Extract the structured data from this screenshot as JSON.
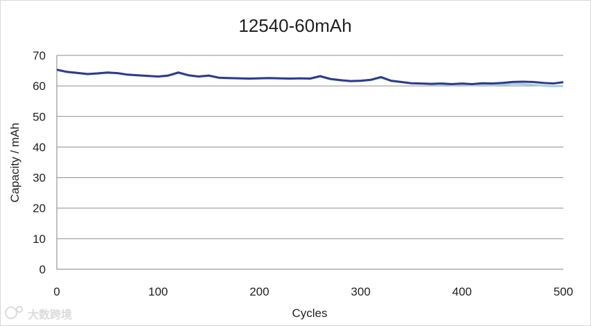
{
  "chart_data": {
    "type": "line",
    "title": "12540-60mAh",
    "xlabel": "Cycles",
    "ylabel": "Capacity / mAh",
    "xlim": [
      0,
      500
    ],
    "ylim": [
      0,
      70
    ],
    "xticks": [
      0,
      100,
      200,
      300,
      400,
      500
    ],
    "yticks": [
      0,
      10,
      20,
      30,
      40,
      50,
      60,
      70
    ],
    "grid": "horizontal",
    "legend": "none",
    "series": [
      {
        "color": "#a8d0dc",
        "x": [
          0,
          10,
          20,
          30,
          40,
          50,
          60,
          70,
          80,
          90,
          100,
          110,
          120,
          130,
          140,
          150,
          160,
          170,
          180,
          190,
          200,
          210,
          220,
          230,
          240,
          250,
          260,
          270,
          280,
          290,
          300,
          310,
          320,
          330,
          340,
          350,
          360,
          370,
          380,
          390,
          400,
          410,
          420,
          430,
          440,
          450,
          460,
          470,
          480,
          490,
          500
        ],
        "y": [
          65.2,
          64.5,
          64.2,
          63.8,
          64.0,
          64.3,
          64.1,
          63.6,
          63.4,
          63.2,
          63.0,
          63.3,
          64.2,
          63.4,
          63.0,
          63.3,
          62.6,
          62.5,
          62.4,
          62.3,
          62.4,
          62.5,
          62.4,
          62.3,
          62.4,
          62.3,
          63.1,
          62.2,
          61.8,
          61.5,
          61.6,
          61.9,
          62.7,
          61.6,
          61.2,
          60.8,
          60.7,
          60.5,
          60.6,
          60.3,
          60.4,
          60.2,
          60.4,
          60.3,
          60.4,
          60.7,
          60.6,
          60.4,
          60.1,
          59.9,
          60.0
        ]
      },
      {
        "color": "#2e3a8c",
        "x": [
          0,
          10,
          20,
          30,
          40,
          50,
          60,
          70,
          80,
          90,
          100,
          110,
          120,
          130,
          140,
          150,
          160,
          170,
          180,
          190,
          200,
          210,
          220,
          230,
          240,
          250,
          260,
          270,
          280,
          290,
          300,
          310,
          320,
          330,
          340,
          350,
          360,
          370,
          380,
          390,
          400,
          410,
          420,
          430,
          440,
          450,
          460,
          470,
          480,
          490,
          500
        ],
        "y": [
          65.3,
          64.6,
          64.3,
          63.9,
          64.1,
          64.4,
          64.2,
          63.7,
          63.5,
          63.3,
          63.1,
          63.4,
          64.4,
          63.5,
          63.1,
          63.4,
          62.7,
          62.6,
          62.5,
          62.4,
          62.5,
          62.6,
          62.5,
          62.4,
          62.5,
          62.4,
          63.2,
          62.3,
          61.9,
          61.6,
          61.7,
          62.0,
          62.9,
          61.7,
          61.3,
          60.9,
          60.8,
          60.7,
          60.8,
          60.6,
          60.8,
          60.6,
          60.9,
          60.8,
          61.0,
          61.3,
          61.4,
          61.3,
          61.0,
          60.8,
          61.2
        ]
      }
    ]
  },
  "watermark": {
    "text": "大数跨境",
    "icon": "brand-logo-icon"
  }
}
